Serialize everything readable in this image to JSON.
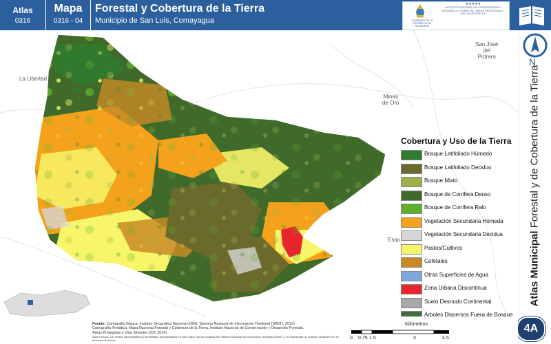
{
  "header": {
    "atlas_label": "Atlas",
    "atlas_code": "0316",
    "mapa_label": "Mapa",
    "mapa_code": "0316 - 04",
    "title": "Forestal y Cobertura de la Tierra",
    "subtitle": "Municipio de San Luis, Comayagua",
    "logo_left_text": "GOBIERNO DE LA REPÚBLICA DE HONDURAS",
    "logo_right_text": "INSTITUTO NACIONAL DE CONSERVACIÓN Y DESARROLLO FORESTAL, ÁREAS PROTEGIDAS Y VIDA SILVESTRE ICF",
    "logo_stars": "★★★★★",
    "book_icon": "open-book-icon"
  },
  "north_arrow": {
    "label": "N",
    "icon": "north-arrow-icon"
  },
  "side_title": {
    "bold": "Atlas Municipal",
    "rest": " Forestal y de Cobertura de la Tierra"
  },
  "badge": "4A",
  "map": {
    "places": [
      {
        "name": "La Libertad"
      },
      {
        "name": "San José\ndel\nPotrero"
      },
      {
        "name": "Minas\nde Oro"
      },
      {
        "name": "Esqu"
      }
    ]
  },
  "legend": {
    "title": "Cobertura y Uso de la Tierra",
    "items": [
      {
        "label": "Bosque Latifoliado Húmedo",
        "color": "#2e7d2e"
      },
      {
        "label": "Bosque Latifoliado Deciduo",
        "color": "#6b6a2c"
      },
      {
        "label": "Bosque Mixto",
        "color": "#9fb04a"
      },
      {
        "label": "Bosque de Conífera Denso",
        "color": "#3f6a2a"
      },
      {
        "label": "Bosque de Conífera Ralo",
        "color": "#5fae2e"
      },
      {
        "label": "Vegetación Secundaria Húmeda",
        "color": "#f4a21c"
      },
      {
        "label": "Vegetación Secundaria Decidua",
        "color": "#d6d6d6"
      },
      {
        "label": "Pastos/Cultivos",
        "color": "#f7f56a"
      },
      {
        "label": "Cafetales",
        "color": "#c88a24"
      },
      {
        "label": "Otras Superficies de Agua",
        "color": "#7ea6d8"
      },
      {
        "label": "Zona Urbana Discontinua",
        "color": "#e8252c"
      },
      {
        "label": "Suelo Desnudo Continental",
        "color": "#a9a9a9"
      },
      {
        "label": "Árboles Dispersos Fuera de Bosque",
        "color": "#3d6f3a"
      }
    ]
  },
  "footer": {
    "source_label": "Fuente:",
    "source_1": "Cartografía Básica: Instituto Geográfico Nacional (IGN), Sistema Nacional de Información Territorial (SINIT), 2013)",
    "source_2": "Cartografía Temática: Mapa Nacional Forestal y Cobertura de la Tierra, Instituto Nacional de Conservación y Desarrollo Forestal,",
    "source_3": "Áreas Protegidas y Vida Silvestre (ICF, 2014)",
    "note": "Nota Técnica: Los límites administrativos y territoriales representados en este mapa, fueron tomados del Sistema Nacional de Información Territorial (SINIT) y no representan la posición oficial del ICF en términos de límites."
  },
  "scale": {
    "unit": "Kilómetros",
    "ticks": [
      "0",
      "0.75",
      "1.5",
      "3",
      "4.5"
    ]
  }
}
